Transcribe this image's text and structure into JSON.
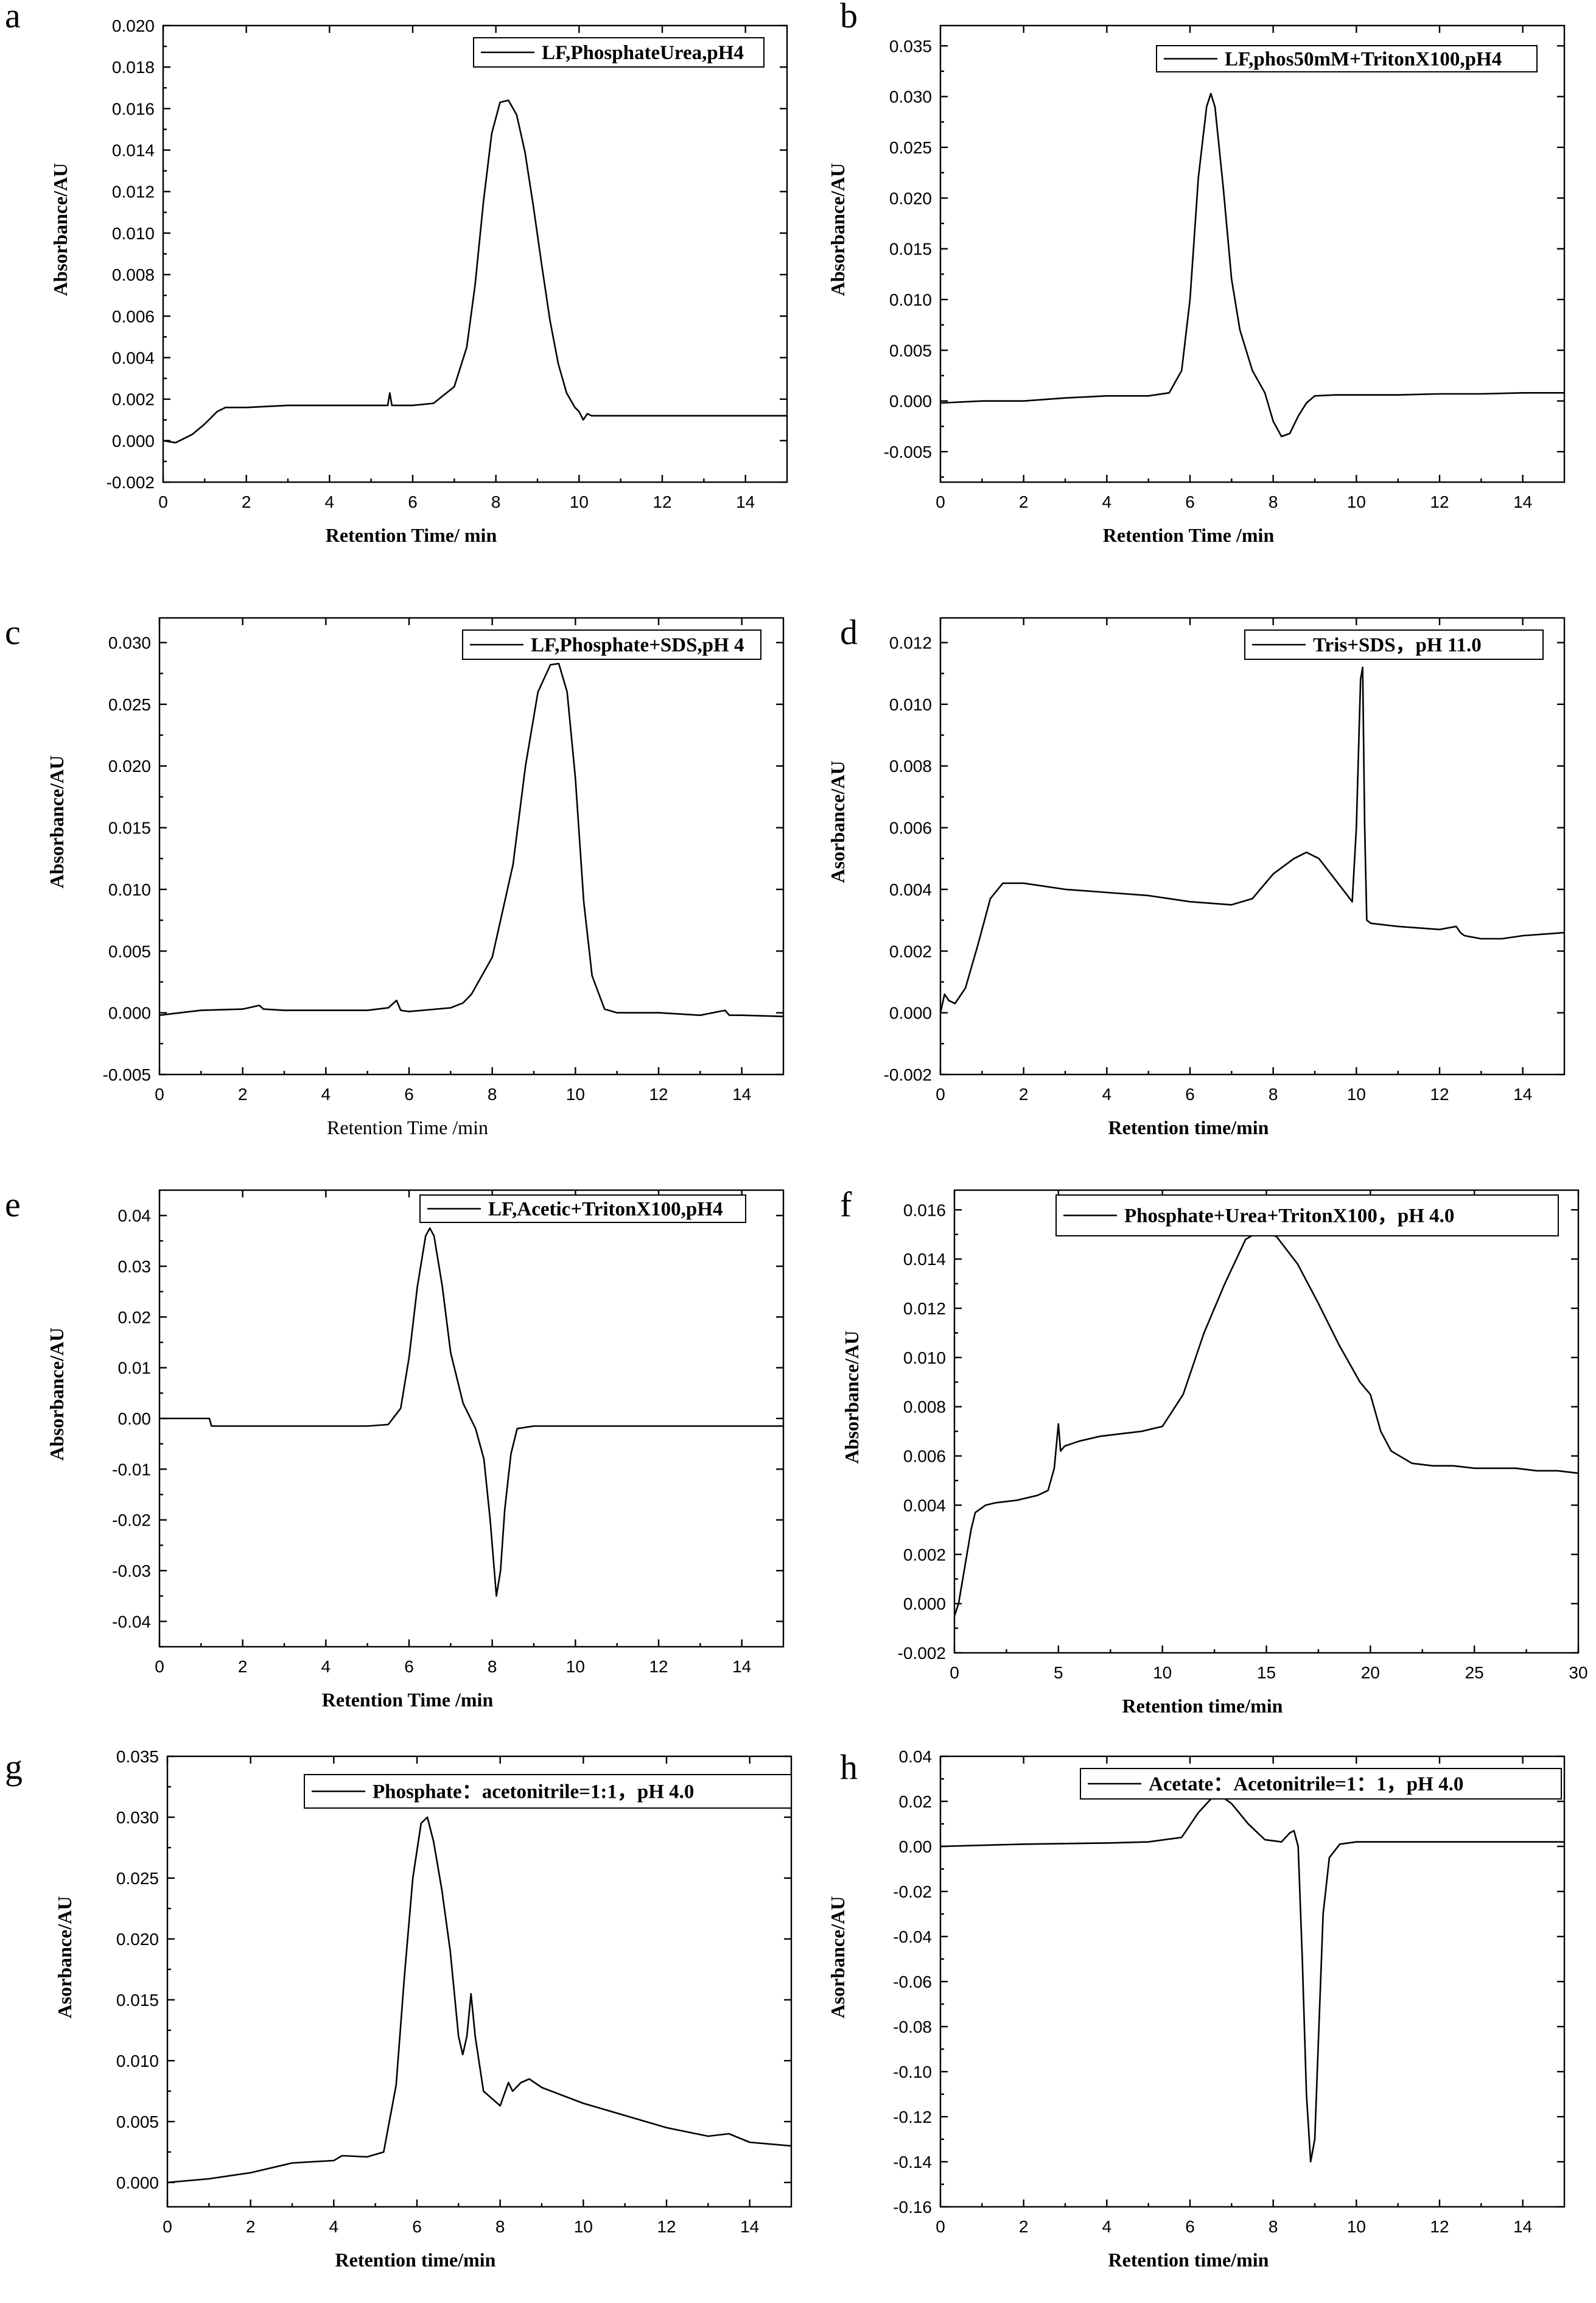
{
  "chart_data": [
    {
      "panel": "a",
      "type": "line",
      "xlabel": "Retention Time/ min",
      "ylabel": "Absorbance/AU",
      "xlim": [
        0,
        15
      ],
      "ylim": [
        -0.002,
        0.02
      ],
      "xticks": [
        0,
        2,
        4,
        6,
        8,
        10,
        12,
        14
      ],
      "yticks": [
        -0.002,
        0.0,
        0.002,
        0.004,
        0.006,
        0.008,
        0.01,
        0.012,
        0.014,
        0.016,
        0.018,
        0.02
      ],
      "ytick_labels": [
        "-0.002",
        "0.000",
        "0.002",
        "0.004",
        "0.006",
        "0.008",
        "0.010",
        "0.012",
        "0.014",
        "0.016",
        "0.018",
        "0.020"
      ],
      "series": [
        {
          "name": "LF,PhosphateUrea,pH4",
          "x": [
            0,
            0.3,
            0.7,
            1.0,
            1.3,
            1.5,
            2,
            3,
            4,
            5,
            5.4,
            5.45,
            5.5,
            5.6,
            6,
            6.5,
            7,
            7.3,
            7.5,
            7.7,
            7.9,
            8.1,
            8.3,
            8.5,
            8.7,
            8.9,
            9.1,
            9.3,
            9.5,
            9.7,
            9.9,
            10.0,
            10.1,
            10.2,
            10.3,
            11,
            12,
            13,
            14,
            15
          ],
          "y": [
            0,
            -0.0001,
            0.0003,
            0.0008,
            0.0014,
            0.0016,
            0.0016,
            0.0017,
            0.0017,
            0.0017,
            0.0017,
            0.0023,
            0.0017,
            0.0017,
            0.0017,
            0.0018,
            0.0026,
            0.0045,
            0.0075,
            0.0115,
            0.0148,
            0.0163,
            0.0164,
            0.0157,
            0.0139,
            0.0113,
            0.0085,
            0.0058,
            0.0037,
            0.0023,
            0.0016,
            0.0014,
            0.001,
            0.0013,
            0.0012,
            0.0012,
            0.0012,
            0.0012,
            0.0012,
            0.0012
          ]
        }
      ]
    },
    {
      "panel": "b",
      "type": "line",
      "xlabel": "Retention Time /min",
      "ylabel": "Absorbance/AU",
      "xlim": [
        0,
        15
      ],
      "ylim": [
        -0.008,
        0.037
      ],
      "xticks": [
        0,
        2,
        4,
        6,
        8,
        10,
        12,
        14
      ],
      "yticks": [
        -0.005,
        0.0,
        0.005,
        0.01,
        0.015,
        0.02,
        0.025,
        0.03,
        0.035
      ],
      "ytick_labels": [
        "-0.005",
        "0.000",
        "0.005",
        "0.010",
        "0.015",
        "0.020",
        "0.025",
        "0.030",
        "0.035"
      ],
      "series": [
        {
          "name": "LF,phos50mM+TritonX100,pH4",
          "x": [
            0,
            1,
            2,
            3,
            4,
            5,
            5.5,
            5.8,
            6.0,
            6.2,
            6.4,
            6.5,
            6.6,
            6.8,
            7.0,
            7.2,
            7.5,
            7.8,
            8.0,
            8.2,
            8.4,
            8.6,
            8.8,
            9.0,
            9.5,
            10,
            11,
            12,
            13,
            14,
            15
          ],
          "y": [
            -0.0002,
            0.0,
            0.0,
            0.0003,
            0.0005,
            0.0005,
            0.0008,
            0.003,
            0.01,
            0.022,
            0.029,
            0.0303,
            0.029,
            0.021,
            0.012,
            0.007,
            0.003,
            0.0008,
            -0.002,
            -0.0035,
            -0.0032,
            -0.0015,
            -0.0002,
            0.0005,
            0.0006,
            0.0006,
            0.0006,
            0.0007,
            0.0007,
            0.0008,
            0.0008
          ]
        }
      ]
    },
    {
      "panel": "c",
      "type": "line",
      "xlabel": "Retention Time /min",
      "ylabel": "Absorbance/AU",
      "xlim": [
        0,
        15
      ],
      "ylim": [
        -0.005,
        0.032
      ],
      "xticks": [
        0,
        2,
        4,
        6,
        8,
        10,
        12,
        14
      ],
      "yticks": [
        -0.005,
        0.0,
        0.005,
        0.01,
        0.015,
        0.02,
        0.025,
        0.03
      ],
      "ytick_labels": [
        "-0.005",
        "0.000",
        "0.005",
        "0.010",
        "0.015",
        "0.020",
        "0.025",
        "0.030"
      ],
      "series": [
        {
          "name": "LF,Phosphate+SDS,pH 4",
          "x": [
            0,
            0.5,
            1,
            2,
            2.4,
            2.5,
            3,
            4,
            5,
            5.5,
            5.7,
            5.8,
            6,
            7,
            7.3,
            7.5,
            8.0,
            8.5,
            8.8,
            9.1,
            9.4,
            9.6,
            9.8,
            10.0,
            10.2,
            10.4,
            10.7,
            11,
            12,
            13,
            13.6,
            13.7,
            14,
            15
          ],
          "y": [
            -0.0002,
            0.0,
            0.0002,
            0.0003,
            0.0006,
            0.0003,
            0.0002,
            0.0002,
            0.0002,
            0.0004,
            0.001,
            0.0002,
            0.0001,
            0.0004,
            0.0008,
            0.0015,
            0.0045,
            0.012,
            0.02,
            0.026,
            0.0282,
            0.0283,
            0.026,
            0.019,
            0.009,
            0.003,
            0.0003,
            0.0,
            0.0,
            -0.0002,
            0.0002,
            -0.0002,
            -0.0002,
            -0.0003
          ]
        }
      ]
    },
    {
      "panel": "d",
      "type": "line",
      "xlabel": "Retention time/min",
      "ylabel": "Asorbance/AU",
      "xlim": [
        0,
        15
      ],
      "ylim": [
        -0.002,
        0.0128
      ],
      "xticks": [
        0,
        2,
        4,
        6,
        8,
        10,
        12,
        14
      ],
      "yticks": [
        -0.002,
        0.0,
        0.002,
        0.004,
        0.006,
        0.008,
        0.01,
        0.012
      ],
      "ytick_labels": [
        "-0.002",
        "0.000",
        "0.002",
        "0.004",
        "0.006",
        "0.008",
        "0.010",
        "0.012"
      ],
      "series": [
        {
          "name": "Tris+SDS，pH 11.0",
          "x": [
            0,
            0.1,
            0.2,
            0.35,
            0.6,
            0.9,
            1.2,
            1.5,
            2,
            3,
            4,
            5,
            6,
            7,
            7.5,
            8.0,
            8.5,
            8.8,
            9.1,
            9.5,
            9.9,
            10.0,
            10.1,
            10.15,
            10.2,
            10.25,
            10.35,
            11,
            12,
            12.4,
            12.5,
            12.6,
            13,
            13.5,
            14,
            15
          ],
          "y": [
            0,
            0.0006,
            0.0004,
            0.0003,
            0.0008,
            0.0022,
            0.0037,
            0.0042,
            0.0042,
            0.004,
            0.0039,
            0.0038,
            0.0036,
            0.0035,
            0.0037,
            0.0045,
            0.005,
            0.0052,
            0.005,
            0.0043,
            0.0036,
            0.006,
            0.0108,
            0.0112,
            0.006,
            0.003,
            0.0029,
            0.0028,
            0.0027,
            0.0028,
            0.0026,
            0.0025,
            0.0024,
            0.0024,
            0.0025,
            0.0026
          ]
        }
      ]
    },
    {
      "panel": "e",
      "type": "line",
      "xlabel": "Retention Time /min",
      "ylabel": "Absorbance/AU",
      "xlim": [
        0,
        15
      ],
      "ylim": [
        -0.045,
        0.045
      ],
      "xticks": [
        0,
        2,
        4,
        6,
        8,
        10,
        12,
        14
      ],
      "yticks": [
        -0.04,
        -0.03,
        -0.02,
        -0.01,
        0.0,
        0.01,
        0.02,
        0.03,
        0.04
      ],
      "ytick_labels": [
        "-0.04",
        "-0.03",
        "-0.02",
        "-0.01",
        "0.00",
        "0.01",
        "0.02",
        "0.03",
        "0.04"
      ],
      "series": [
        {
          "name": "LF,Acetic+TritonX100,pH4",
          "x": [
            0,
            1.2,
            1.25,
            1.3,
            2,
            3,
            4,
            5,
            5.5,
            5.8,
            6.0,
            6.2,
            6.4,
            6.5,
            6.6,
            6.8,
            7.0,
            7.3,
            7.6,
            7.8,
            7.95,
            8.1,
            8.2,
            8.3,
            8.45,
            8.6,
            9,
            10,
            11,
            12,
            13,
            14,
            15
          ],
          "y": [
            0.0,
            0.0,
            -0.0015,
            -0.0015,
            -0.0015,
            -0.0015,
            -0.0015,
            -0.0015,
            -0.0012,
            0.002,
            0.012,
            0.026,
            0.036,
            0.0375,
            0.036,
            0.026,
            0.013,
            0.003,
            -0.002,
            -0.008,
            -0.02,
            -0.035,
            -0.03,
            -0.018,
            -0.007,
            -0.002,
            -0.0015,
            -0.0015,
            -0.0015,
            -0.0015,
            -0.0015,
            -0.0015,
            -0.0015
          ]
        }
      ]
    },
    {
      "panel": "f",
      "type": "line",
      "xlabel": "Retention time/min",
      "ylabel": "Absorbance/AU",
      "xlim": [
        0,
        30
      ],
      "ylim": [
        -0.002,
        0.0168
      ],
      "xticks": [
        0,
        5,
        10,
        15,
        20,
        25,
        30
      ],
      "yticks": [
        -0.002,
        0.0,
        0.002,
        0.004,
        0.006,
        0.008,
        0.01,
        0.012,
        0.014,
        0.016
      ],
      "ytick_labels": [
        "-0.002",
        "0.000",
        "0.002",
        "0.004",
        "0.006",
        "0.008",
        "0.010",
        "0.012",
        "0.014",
        "0.016"
      ],
      "series": [
        {
          "name": "Phosphate+Urea+TritonX100，pH 4.0",
          "x": [
            0,
            0.2,
            0.5,
            0.8,
            1.0,
            1.5,
            2,
            3,
            4,
            4.5,
            4.8,
            5.0,
            5.1,
            5.3,
            6,
            7,
            8,
            9,
            10,
            11,
            12,
            13,
            14,
            14.8,
            15.5,
            16.5,
            17.5,
            18.5,
            19.5,
            20,
            20.5,
            21,
            22,
            23,
            24,
            25,
            26,
            27,
            28,
            29,
            30
          ],
          "y": [
            -0.0005,
            0.0,
            0.0015,
            0.003,
            0.0037,
            0.004,
            0.0041,
            0.0042,
            0.0044,
            0.0046,
            0.0055,
            0.0073,
            0.0062,
            0.0064,
            0.0066,
            0.0068,
            0.0069,
            0.007,
            0.0072,
            0.0085,
            0.011,
            0.013,
            0.0148,
            0.0152,
            0.0149,
            0.0138,
            0.0122,
            0.0105,
            0.009,
            0.0085,
            0.007,
            0.0062,
            0.0057,
            0.0056,
            0.0056,
            0.0055,
            0.0055,
            0.0055,
            0.0054,
            0.0054,
            0.0053
          ]
        }
      ]
    },
    {
      "panel": "g",
      "type": "line",
      "xlabel": "Retention time/min",
      "ylabel": "Asorbance/AU",
      "xlim": [
        0,
        15
      ],
      "ylim": [
        -0.002,
        0.035
      ],
      "xticks": [
        0,
        2,
        4,
        6,
        8,
        10,
        12,
        14
      ],
      "yticks": [
        0.0,
        0.005,
        0.01,
        0.015,
        0.02,
        0.025,
        0.03,
        0.035
      ],
      "ytick_labels": [
        "0.000",
        "0.005",
        "0.010",
        "0.015",
        "0.020",
        "0.025",
        "0.030",
        "0.035"
      ],
      "series": [
        {
          "name": "Phosphate：acetonitrile=1:1，pH 4.0",
          "x": [
            0,
            1,
            2,
            3,
            4,
            4.2,
            4.8,
            5.2,
            5.5,
            5.7,
            5.9,
            6.1,
            6.25,
            6.4,
            6.6,
            6.8,
            7.0,
            7.1,
            7.2,
            7.3,
            7.4,
            7.6,
            8.0,
            8.2,
            8.3,
            8.5,
            8.7,
            9,
            10,
            11,
            12,
            13,
            13.5,
            14,
            15
          ],
          "y": [
            0.0,
            0.0003,
            0.0008,
            0.0016,
            0.0018,
            0.0022,
            0.0021,
            0.0025,
            0.008,
            0.017,
            0.025,
            0.0295,
            0.03,
            0.028,
            0.024,
            0.019,
            0.012,
            0.0105,
            0.012,
            0.0155,
            0.012,
            0.0075,
            0.0063,
            0.0082,
            0.0075,
            0.0082,
            0.0085,
            0.0078,
            0.0065,
            0.0055,
            0.0045,
            0.0038,
            0.004,
            0.0033,
            0.003
          ]
        }
      ]
    },
    {
      "panel": "h",
      "type": "line",
      "xlabel": "Retention time/min",
      "ylabel": "Asorbance/AU",
      "xlim": [
        0,
        15
      ],
      "ylim": [
        -0.16,
        0.04
      ],
      "xticks": [
        0,
        2,
        4,
        6,
        8,
        10,
        12,
        14
      ],
      "yticks": [
        -0.16,
        -0.14,
        -0.12,
        -0.1,
        -0.08,
        -0.06,
        -0.04,
        -0.02,
        0.0,
        0.02,
        0.04
      ],
      "ytick_labels": [
        "-0.16",
        "-0.14",
        "-0.12",
        "-0.10",
        "-0.08",
        "-0.06",
        "-0.04",
        "-0.02",
        "0.00",
        "0.02",
        "0.04"
      ],
      "series": [
        {
          "name": "Acetate：Acetonitrile=1：1，pH 4.0",
          "x": [
            0,
            2,
            4,
            5,
            5.8,
            6.2,
            6.5,
            6.7,
            7.0,
            7.4,
            7.8,
            8.2,
            8.4,
            8.5,
            8.6,
            8.7,
            8.8,
            8.9,
            9.0,
            9.1,
            9.2,
            9.35,
            9.6,
            10,
            12,
            15
          ],
          "y": [
            0.0,
            0.001,
            0.0015,
            0.002,
            0.004,
            0.015,
            0.021,
            0.023,
            0.019,
            0.01,
            0.003,
            0.002,
            0.006,
            0.007,
            0.0,
            -0.05,
            -0.11,
            -0.14,
            -0.13,
            -0.08,
            -0.03,
            -0.005,
            0.001,
            0.002,
            0.002,
            0.002
          ]
        }
      ]
    }
  ]
}
